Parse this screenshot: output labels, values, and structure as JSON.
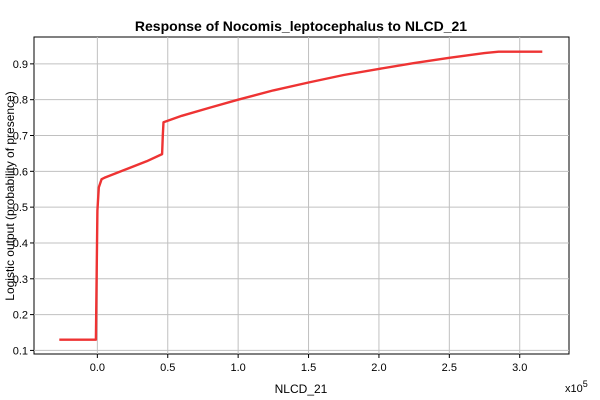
{
  "chart_data": {
    "type": "line",
    "title": "Response of Nocomis_leptocephalus to NLCD_21",
    "xlabel": "NLCD_21",
    "ylabel": "Logistic output (probability of presence)",
    "x_multiplier_prefix": "x10",
    "x_multiplier_exponent": "5",
    "xlim": [
      -0.45,
      3.35
    ],
    "ylim": [
      0.09,
      0.975
    ],
    "x_ticks": [
      0.0,
      0.5,
      1.0,
      1.5,
      2.0,
      2.5,
      3.0
    ],
    "x_tick_labels": [
      "0.0",
      "0.5",
      "1.0",
      "1.5",
      "2.0",
      "2.5",
      "3.0"
    ],
    "y_ticks": [
      0.1,
      0.2,
      0.3,
      0.4,
      0.5,
      0.6,
      0.7,
      0.8,
      0.9
    ],
    "y_tick_labels": [
      "0.1",
      "0.2",
      "0.3",
      "0.4",
      "0.5",
      "0.6",
      "0.7",
      "0.8",
      "0.9"
    ],
    "grid": true,
    "line_color": "#ee3333",
    "series": [
      {
        "x": [
          -0.27,
          -0.01,
          0.0,
          0.01,
          0.03,
          0.05,
          0.2,
          0.35,
          0.46,
          0.465,
          0.47,
          0.6,
          0.8,
          1.0,
          1.25,
          1.5,
          1.75,
          2.0,
          2.25,
          2.5,
          2.75,
          2.85,
          2.95,
          3.05,
          3.16
        ],
        "y": [
          0.13,
          0.13,
          0.49,
          0.555,
          0.578,
          0.582,
          0.605,
          0.628,
          0.648,
          0.7,
          0.737,
          0.755,
          0.778,
          0.8,
          0.826,
          0.848,
          0.869,
          0.886,
          0.902,
          0.917,
          0.93,
          0.934,
          0.934,
          0.934,
          0.934
        ]
      }
    ]
  }
}
